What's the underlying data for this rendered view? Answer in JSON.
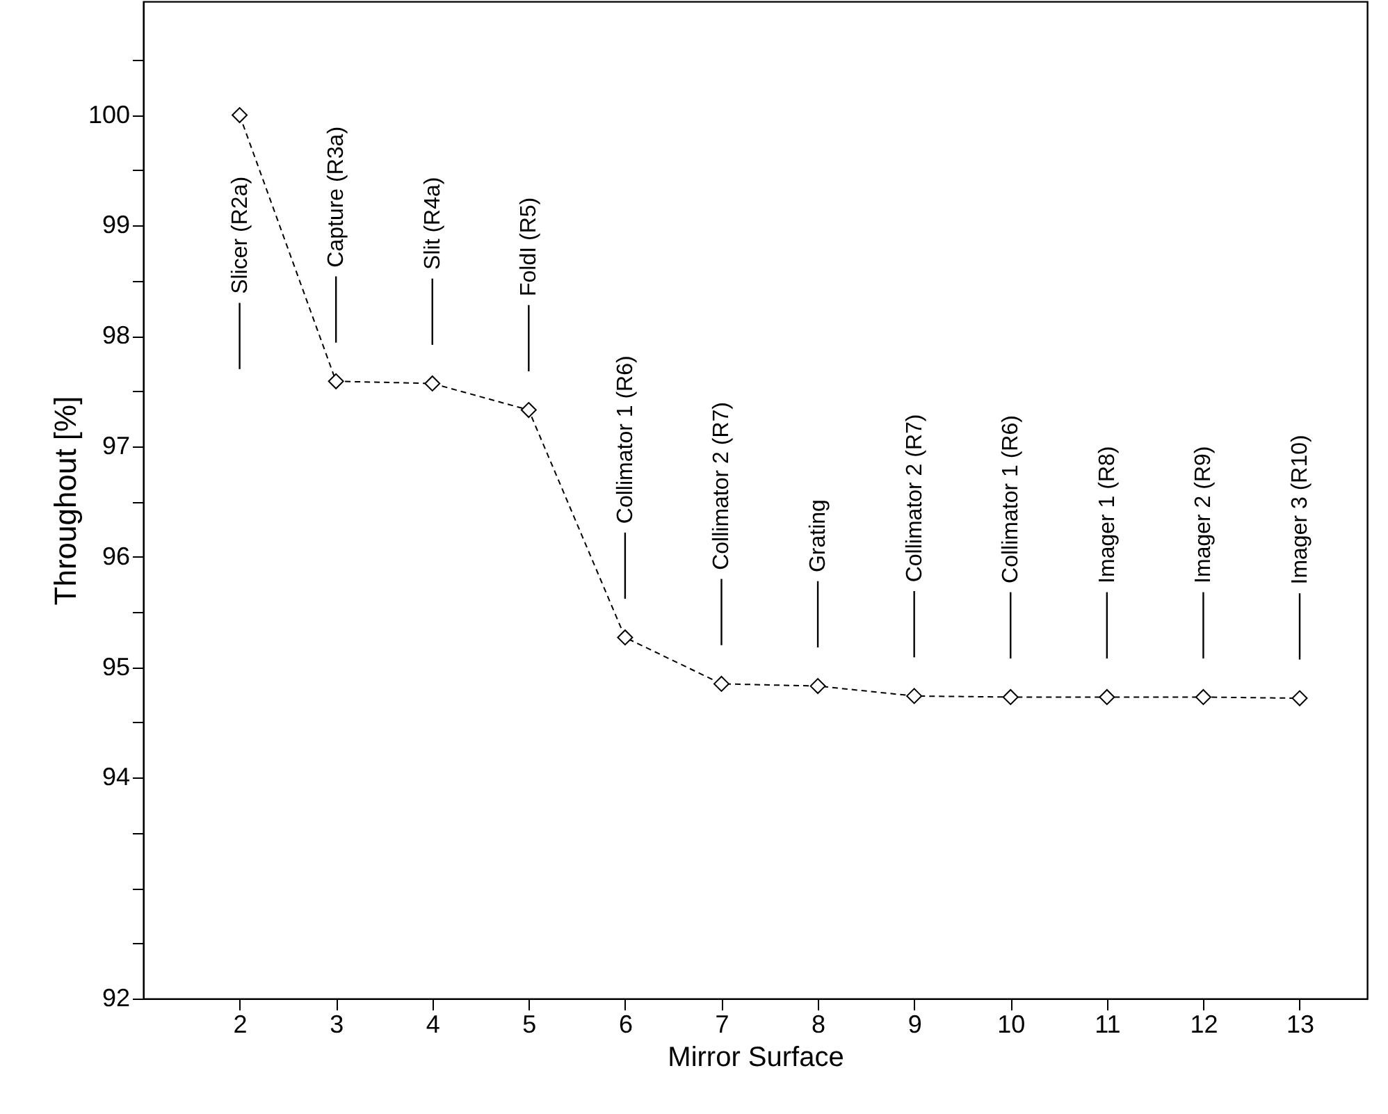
{
  "chart_data": {
    "type": "line",
    "xlabel": "Mirror Surface",
    "ylabel": "Throughout [%]",
    "x": [
      2,
      3,
      4,
      5,
      6,
      7,
      8,
      9,
      10,
      11,
      12,
      13
    ],
    "series": [
      {
        "color": "#000000",
        "values": [
          100,
          97.59,
          97.57,
          97.33,
          95.27,
          94.85,
          94.83,
          94.74,
          94.73,
          94.73,
          94.73,
          94.72
        ]
      }
    ],
    "marker": "diamond",
    "line_style": "dashed",
    "grid": false,
    "xlim": [
      1,
      13.7
    ],
    "xticks": [
      2,
      3,
      4,
      5,
      6,
      7,
      8,
      9,
      10,
      11,
      12,
      13
    ],
    "ylim": [
      92,
      101.03
    ],
    "yticks": [
      92,
      {
        "value": 92.5,
        "label": null
      },
      {
        "value": 93,
        "label": null
      },
      {
        "value": 93.5,
        "label": null
      },
      94,
      {
        "value": 94.5,
        "label": null
      },
      95,
      {
        "value": 95.5,
        "label": null
      },
      96,
      {
        "value": 96.5,
        "label": null
      },
      97,
      {
        "value": 97.5,
        "label": null
      },
      98,
      {
        "value": 98.5,
        "label": null
      },
      99,
      {
        "value": 99.5,
        "label": null
      },
      100,
      {
        "value": 100.5,
        "label": null
      }
    ],
    "annotations": [
      "Slicer (R2a)",
      "Capture (R3a)",
      "Slit  (R4a)",
      "FoldI (R5)",
      "Collimator 1 (R6)",
      "Collimator 2 (R7)",
      "Grating",
      "Collimator 2 (R7)",
      "Collimator 1 (R6)",
      "Imager 1 (R8)",
      "Imager 2 (R9)",
      "Imager 3 (R10)"
    ]
  }
}
